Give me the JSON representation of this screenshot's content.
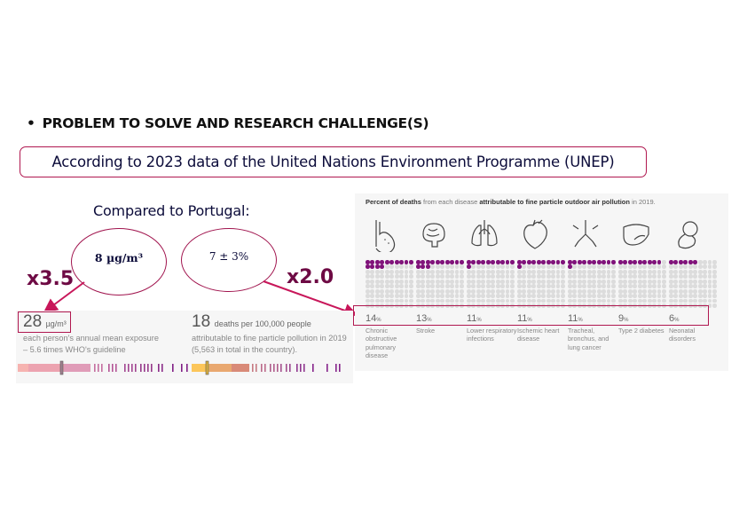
{
  "heading": {
    "bullet": "•",
    "text": "PROBLEM TO SOLVE AND RESEARCH CHALLENGE(S)"
  },
  "source_box": "According to 2023 data of the United Nations Environment Programme (UNEP)",
  "compared_label": "Compared to Portugal:",
  "ovals": [
    {
      "text": "8 µg/m³"
    },
    {
      "text": "7 ± 3%"
    }
  ],
  "multipliers": [
    "x3.5",
    "x2.0"
  ],
  "accent_color": "#b0174f",
  "left_panel": {
    "exposure": {
      "value": "28",
      "unit": "µg/m³",
      "desc_line1": "each person's annual mean exposure",
      "desc_line2": "– 5.6 times WHO's guideline"
    },
    "deaths": {
      "value": "18",
      "unit": "deaths per 100,000 people",
      "desc_line1": "attributable to fine particle pollution in 2019",
      "desc_line2": "(5,563 in total in the country)."
    }
  },
  "right_panel": {
    "title_parts": [
      {
        "text": "Percent of deaths",
        "bold": true
      },
      {
        "text": " from each disease ",
        "bold": false
      },
      {
        "text": "attributable to fine particle outdoor air pollution",
        "bold": true
      },
      {
        "text": " in 2019.",
        "bold": false
      }
    ],
    "diseases": [
      {
        "icon": "copd-lung-icon",
        "percent": 14,
        "label": "Chronic obstructive pulmonary disease"
      },
      {
        "icon": "brain-icon",
        "percent": 13,
        "label": "Stroke"
      },
      {
        "icon": "lungs-icon",
        "percent": 11,
        "label": "Lower respiratory infections"
      },
      {
        "icon": "heart-icon",
        "percent": 11,
        "label": "Ischemic heart disease"
      },
      {
        "icon": "bronchus-icon",
        "percent": 11,
        "label": "Tracheal, bronchus, and lung cancer"
      },
      {
        "icon": "pancreas-icon",
        "percent": 9,
        "label": "Type 2 diabetes"
      },
      {
        "icon": "fetus-icon",
        "percent": 6,
        "label": "Neonatal disorders"
      }
    ]
  }
}
